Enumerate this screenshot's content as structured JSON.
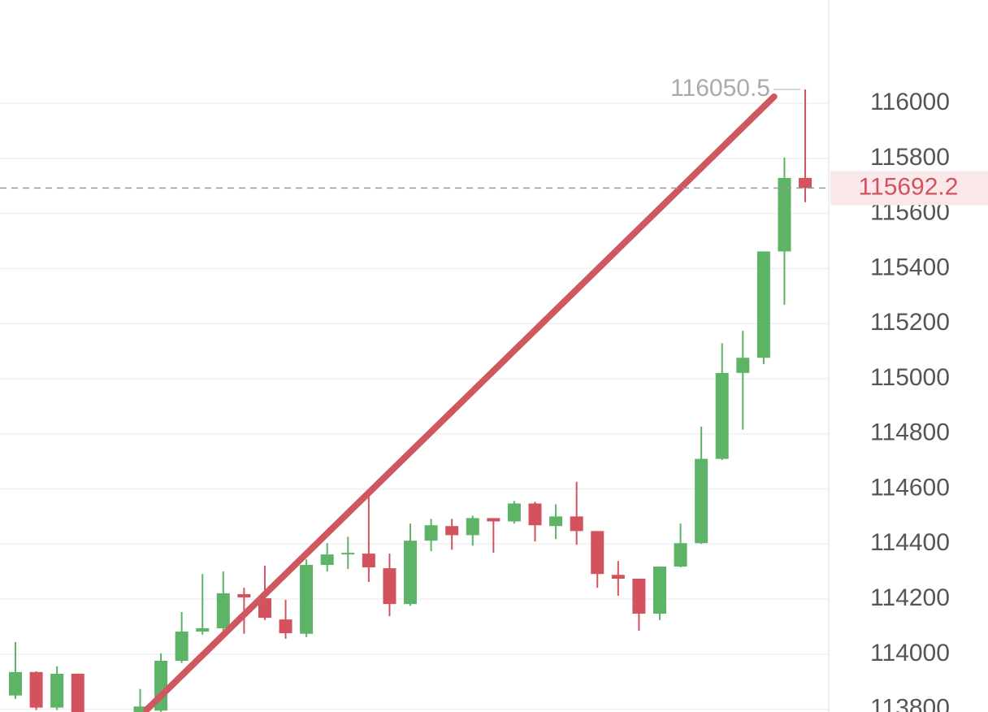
{
  "chart_data": {
    "type": "candlestick",
    "categories": [
      null,
      null,
      null,
      null,
      null,
      null,
      null,
      null,
      null,
      null,
      null,
      null,
      null,
      null,
      null,
      null,
      null,
      null,
      null,
      null,
      null,
      null,
      null,
      null,
      null,
      null,
      null,
      null,
      null,
      null,
      null,
      null,
      null,
      null,
      null,
      null,
      null,
      null,
      null
    ],
    "open": [
      113850,
      113935,
      113806,
      113929,
      null,
      null,
      113790,
      113795,
      113976,
      114082,
      114094,
      114218,
      114203,
      114126,
      114074,
      114324,
      114362,
      114365,
      114312,
      114182,
      114412,
      114465,
      114432,
      114494,
      114482,
      114547,
      114465,
      114500,
      114447,
      114288,
      114274,
      114147,
      114318,
      114403,
      114709,
      115021,
      115076,
      115462,
      115729
    ],
    "high": [
      114044,
      113938,
      113956,
      113929,
      null,
      null,
      113874,
      114003,
      114153,
      114291,
      114300,
      114241,
      114321,
      114197,
      114344,
      114403,
      114426,
      114574,
      114365,
      114474,
      114491,
      114491,
      114503,
      114494,
      114556,
      114553,
      114544,
      114626,
      114447,
      114338,
      114274,
      114318,
      114474,
      114826,
      115129,
      115174,
      115462,
      115803,
      116050.5
    ],
    "low": [
      113838,
      113797,
      113797,
      113760,
      null,
      null,
      113780,
      113790,
      113968,
      114071,
      114085,
      114074,
      114124,
      114056,
      114062,
      114300,
      114309,
      114262,
      114138,
      114176,
      114374,
      114379,
      114394,
      114368,
      114474,
      114409,
      114418,
      114397,
      114241,
      114212,
      114085,
      114124,
      114315,
      114400,
      114705,
      114815,
      115053,
      115268,
      115641
    ],
    "close": [
      113935,
      113806,
      113929,
      113780,
      null,
      null,
      113810,
      113976,
      114082,
      114094,
      114221,
      114206,
      114132,
      114076,
      114324,
      114362,
      114368,
      114315,
      114182,
      114412,
      114468,
      114432,
      114494,
      114482,
      114547,
      114468,
      114500,
      114447,
      114291,
      114274,
      114147,
      114318,
      114403,
      114709,
      115021,
      115076,
      115462,
      115729,
      115692.2
    ],
    "up_color": "#5db466",
    "down_color": "#d4525d",
    "trendline": {
      "x": [
        6.3,
        36.5
      ],
      "values": [
        113797,
        116024
      ],
      "color": "#cf5860"
    },
    "ylim": [
      113790,
      116375
    ],
    "yticks": [
      113800,
      114000,
      114200,
      114400,
      114600,
      114800,
      115000,
      115200,
      115400,
      115600,
      115800,
      116000
    ],
    "grid": true
  }
}
